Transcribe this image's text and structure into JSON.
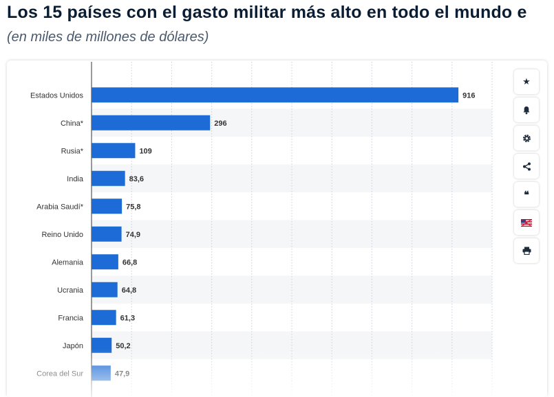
{
  "header": {
    "title": "Los 15 países con el gasto militar más alto en todo el mundo e",
    "subtitle": "(en miles de millones de dólares)"
  },
  "toolbar": {
    "buttons": [
      {
        "name": "star-icon",
        "glyph": "★"
      },
      {
        "name": "bell-icon",
        "glyph": ""
      },
      {
        "name": "gear-icon",
        "glyph": ""
      },
      {
        "name": "share-icon",
        "glyph": ""
      },
      {
        "name": "quote-icon",
        "glyph": "❝"
      },
      {
        "name": "flag-icon",
        "glyph": ""
      },
      {
        "name": "print-icon",
        "glyph": ""
      }
    ]
  },
  "chart_data": {
    "type": "bar",
    "orientation": "horizontal",
    "title": "Los 15 países con el gasto militar más alto en todo el mundo e",
    "subtitle": "(en miles de millones de dólares)",
    "categories": [
      "Estados Unidos",
      "China*",
      "Rusia*",
      "India",
      "Arabia Saudí*",
      "Reino Unido",
      "Alemania",
      "Ucrania",
      "Francia",
      "Japón",
      "Corea del Sur"
    ],
    "values": [
      916,
      296,
      109,
      83.6,
      75.8,
      74.9,
      66.8,
      64.8,
      61.3,
      50.2,
      47.9
    ],
    "value_labels": [
      "916",
      "296",
      "109",
      "83,6",
      "75,8",
      "74,9",
      "66,8",
      "64,8",
      "61,3",
      "50,2",
      "47,9"
    ],
    "xlim": [
      0,
      1000
    ],
    "grid": true,
    "bar_color": "#1c6bd6"
  }
}
